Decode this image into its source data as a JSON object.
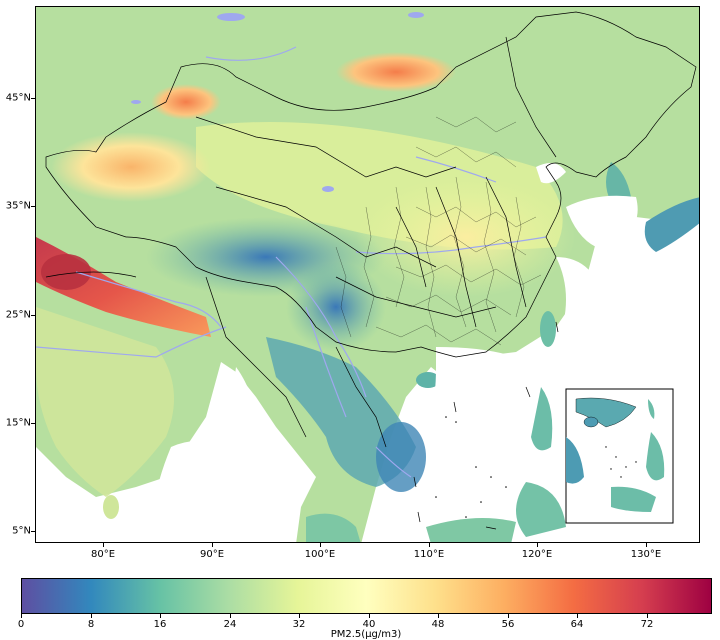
{
  "map": {
    "lat_ticks": [
      "45°N",
      "35°N",
      "25°N",
      "15°N",
      "5°N"
    ],
    "lon_ticks": [
      "80°E",
      "90°E",
      "100°E",
      "110°E",
      "120°E",
      "130°E"
    ]
  },
  "colorbar": {
    "label": "PM2.5(μg/m3)",
    "ticks": [
      "0",
      "8",
      "16",
      "24",
      "32",
      "40",
      "48",
      "56",
      "64",
      "72"
    ],
    "range": [
      0,
      80
    ],
    "colormap": [
      "#5e4fa2",
      "#3288bd",
      "#66c2a5",
      "#abdda4",
      "#e6f598",
      "#ffffbf",
      "#fee08b",
      "#fdae61",
      "#f46d43",
      "#d53e4f",
      "#9e0142"
    ]
  },
  "legend_colors": {
    "rivers_lakes": "#9fa8ef",
    "borders": "#000000",
    "no_data": "#ffffff"
  }
}
